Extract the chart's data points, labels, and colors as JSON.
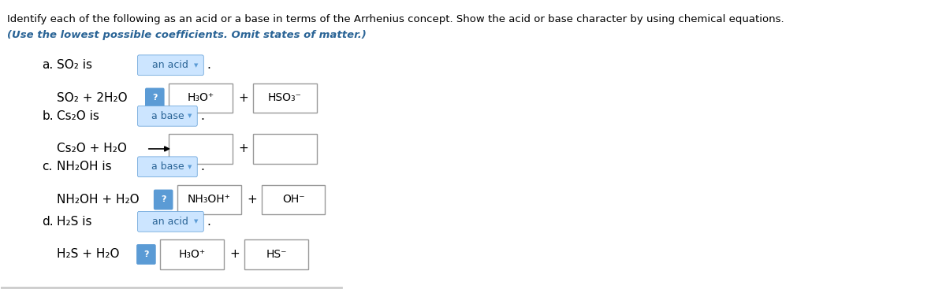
{
  "title_line1": "Identify each of the following as an acid or a base in terms of the Arrhenius concept. Show the acid or base character by using chemical equations.",
  "title_line2": "(Use the lowest possible coefficients. Omit states of matter.)",
  "background_color": "#ffffff",
  "text_color": "#000000",
  "blue_text_color": "#2a6496",
  "italic_color": "#2a6496",
  "box_border_color": "#aaaaaa",
  "box_fill_color": "#ffffff",
  "blue_badge_color": "#5b9bd5",
  "sections": [
    {
      "label": "a.",
      "compound": "SO₂ is",
      "classification": "an acid",
      "equation_left": "SO₂ + 2H₂O",
      "has_arrow": false,
      "has_question": true,
      "product1": "H₃O⁺",
      "product2": "HSO₃⁻",
      "box1_filled": true,
      "box2_filled": true
    },
    {
      "label": "b.",
      "compound": "Cs₂O is",
      "classification": "a base",
      "equation_left": "Cs₂O + H₂O",
      "has_arrow": true,
      "has_question": false,
      "product1": "",
      "product2": "",
      "box1_filled": false,
      "box2_filled": false
    },
    {
      "label": "c.",
      "compound": "NH₂OH is",
      "classification": "a base",
      "equation_left": "NH₂OH + H₂O",
      "has_arrow": false,
      "has_question": true,
      "product1": "NH₃OH⁺",
      "product2": "OH⁻",
      "box1_filled": true,
      "box2_filled": true
    },
    {
      "label": "d.",
      "compound": "H₂S is",
      "classification": "an acid",
      "equation_left": "H₂S + H₂O",
      "has_arrow": false,
      "has_question": true,
      "product1": "H₃O⁺",
      "product2": "HS⁻",
      "box1_filled": true,
      "box2_filled": true
    }
  ],
  "figsize": [
    12.0,
    3.72
  ],
  "dpi": 100
}
